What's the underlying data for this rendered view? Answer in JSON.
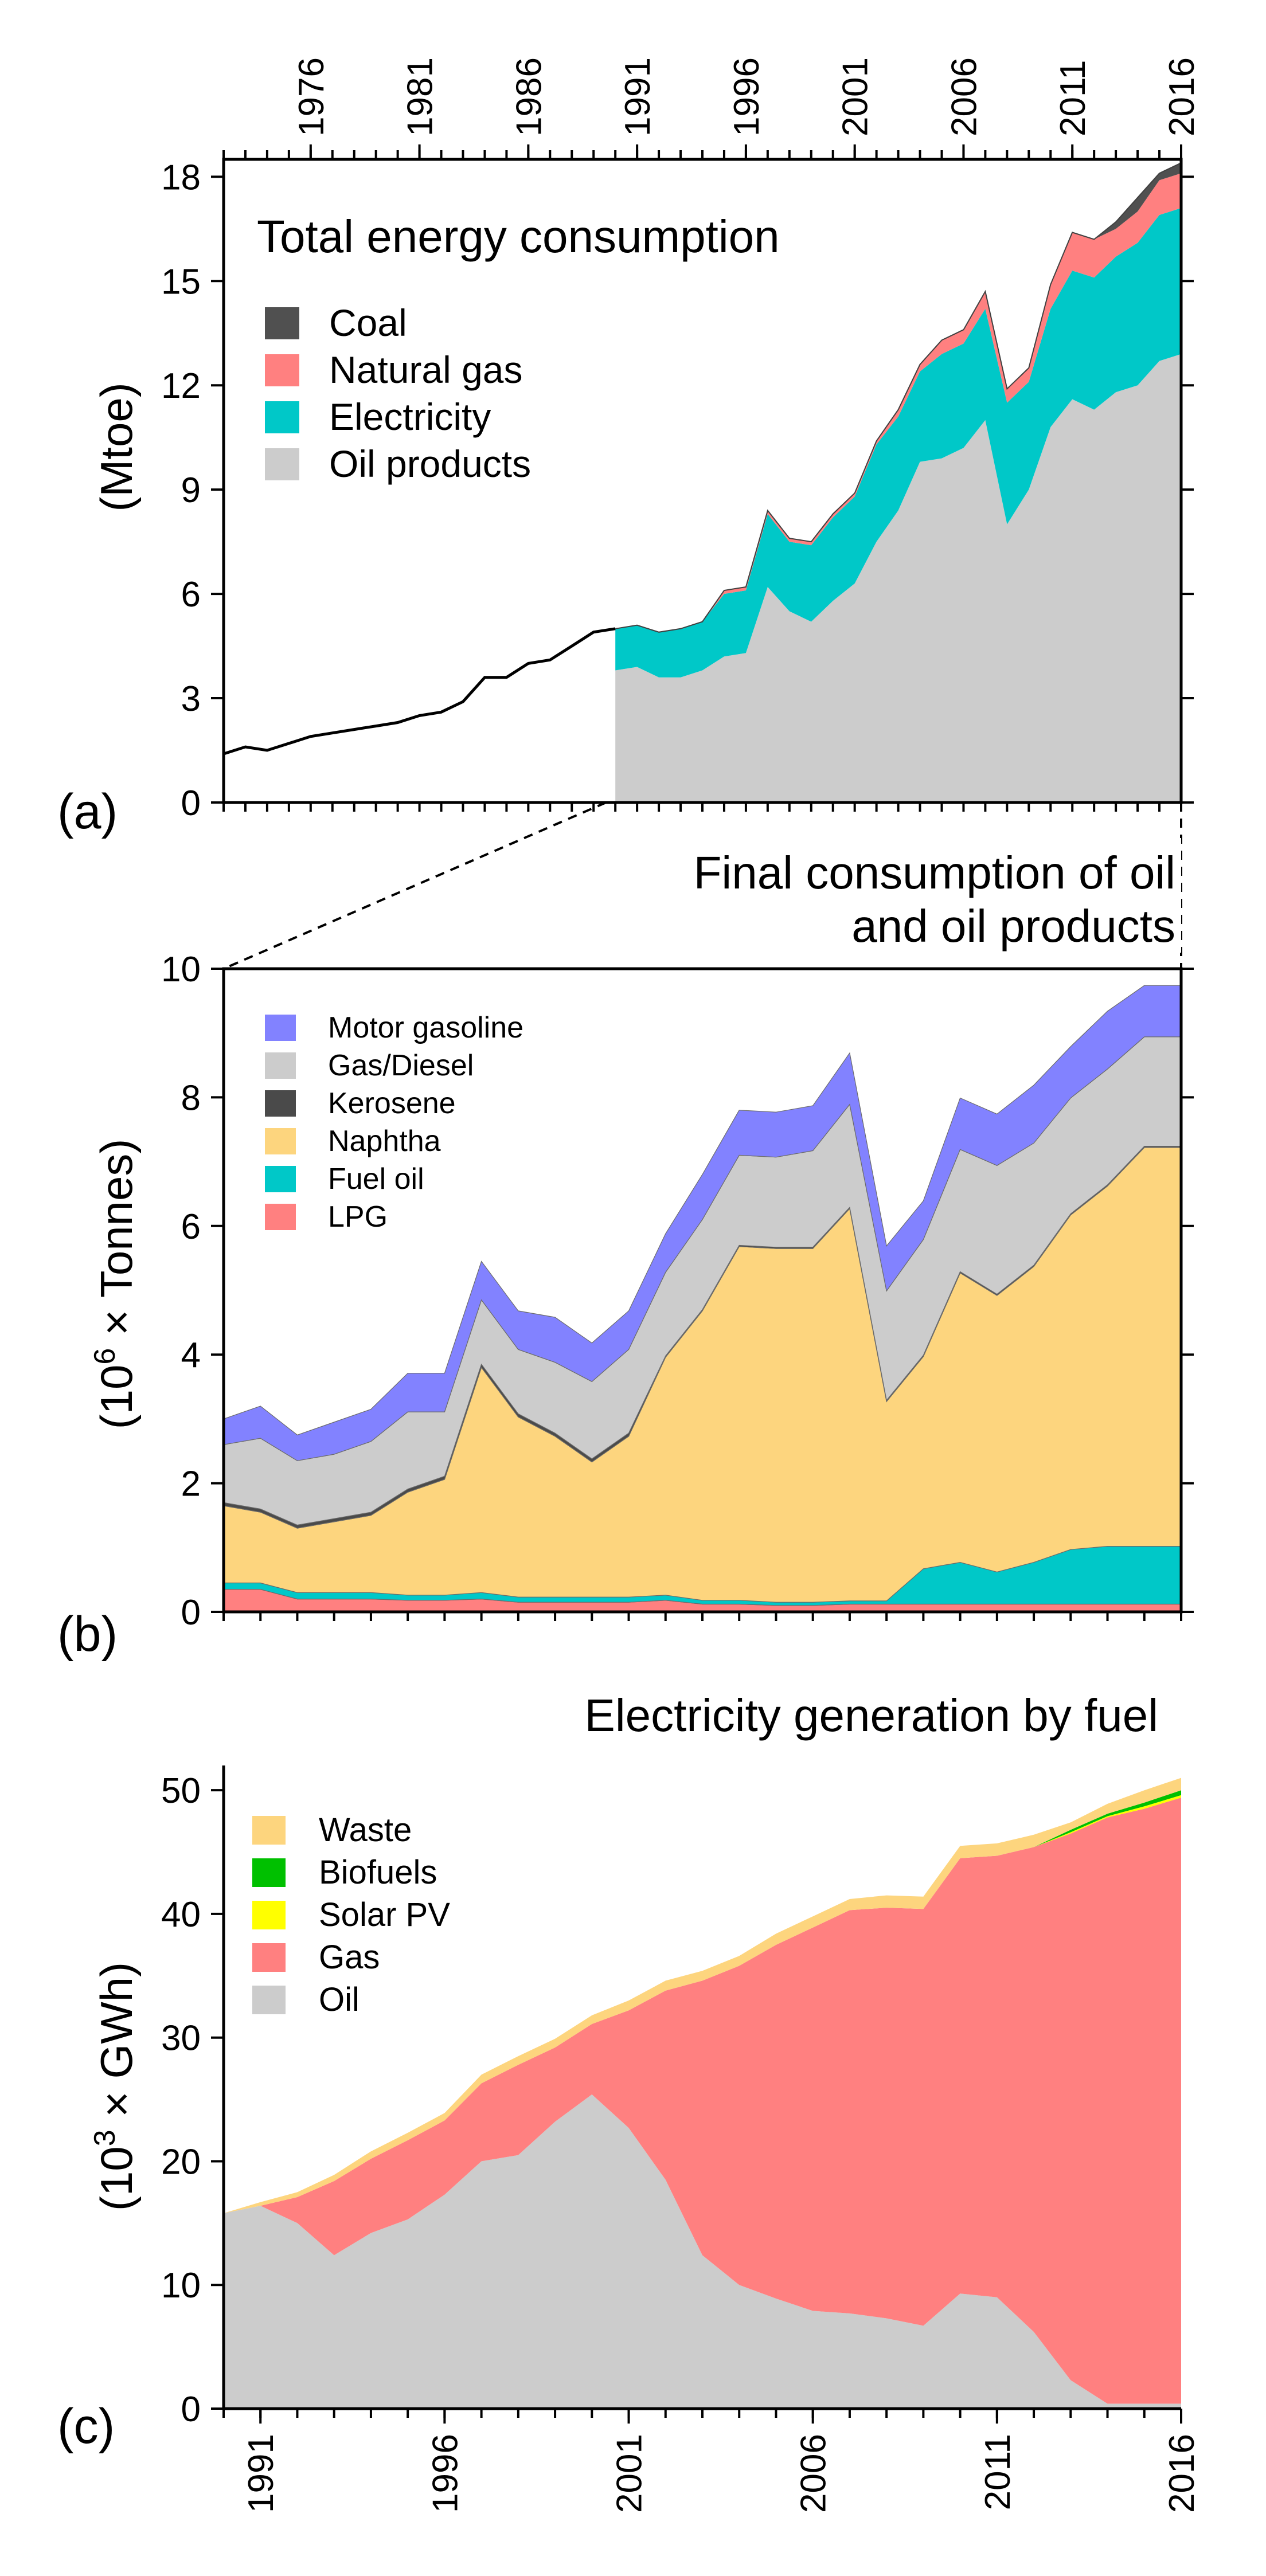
{
  "chart_data": [
    {
      "id": "a",
      "type": "area",
      "panel_label": "(a)",
      "title": "Total energy consumption",
      "ylabel": "(Mtoe)",
      "xlim": [
        1972,
        2016
      ],
      "ylim": [
        0,
        18.5
      ],
      "xticks": [
        1976,
        1981,
        1986,
        1991,
        1996,
        2001,
        2006,
        2011,
        2016
      ],
      "xtick_labels": [
        "1976",
        "1981",
        "1986",
        "1991",
        "1996",
        "2001",
        "2006",
        "2011",
        "2016"
      ],
      "yticks": [
        0,
        3,
        6,
        9,
        12,
        15,
        18
      ],
      "ytick_labels": [
        "0",
        "3",
        "6",
        "9",
        "12",
        "15",
        "18"
      ],
      "x": [
        1990,
        1991,
        1992,
        1993,
        1994,
        1995,
        1996,
        1997,
        1998,
        1999,
        2000,
        2001,
        2002,
        2003,
        2004,
        2005,
        2006,
        2007,
        2008,
        2009,
        2010,
        2011,
        2012,
        2013,
        2014,
        2015,
        2016
      ],
      "series": [
        {
          "name": "Oil products",
          "color": "#cccccc",
          "values": [
            3.8,
            3.9,
            3.6,
            3.6,
            3.8,
            4.2,
            4.3,
            6.2,
            5.5,
            5.2,
            5.8,
            6.3,
            7.5,
            8.4,
            9.8,
            9.9,
            10.2,
            11.0,
            8.0,
            9.0,
            10.8,
            11.6,
            11.3,
            11.8,
            12.0,
            12.7,
            12.9
          ]
        },
        {
          "name": "Electricity",
          "color": "#00c8c8",
          "values": [
            1.2,
            1.2,
            1.3,
            1.4,
            1.4,
            1.8,
            1.8,
            2.1,
            2.0,
            2.2,
            2.4,
            2.5,
            2.8,
            2.7,
            2.6,
            3.0,
            3.0,
            3.2,
            3.5,
            3.1,
            3.4,
            3.7,
            3.8,
            3.9,
            4.1,
            4.2,
            4.2
          ]
        },
        {
          "name": "Natural gas",
          "color": "#ff8080",
          "values": [
            0.0,
            0.0,
            0.0,
            0.0,
            0.0,
            0.1,
            0.1,
            0.1,
            0.1,
            0.1,
            0.1,
            0.1,
            0.1,
            0.2,
            0.2,
            0.4,
            0.4,
            0.5,
            0.4,
            0.4,
            0.7,
            1.1,
            1.1,
            0.8,
            0.9,
            1.0,
            1.0
          ]
        },
        {
          "name": "Coal",
          "color": "#505050",
          "values": [
            0,
            0,
            0,
            0,
            0,
            0,
            0,
            0,
            0,
            0,
            0,
            0,
            0,
            0,
            0,
            0,
            0,
            0,
            0,
            0,
            0,
            0,
            0,
            0.2,
            0.4,
            0.2,
            0.3
          ]
        }
      ],
      "line_series": {
        "name": "Total (pre-1990)",
        "color": "#000000",
        "x": [
          1972,
          1973,
          1974,
          1975,
          1976,
          1977,
          1978,
          1979,
          1980,
          1981,
          1982,
          1983,
          1984,
          1985,
          1986,
          1987,
          1988,
          1989,
          1990
        ],
        "values": [
          1.4,
          1.6,
          1.5,
          1.7,
          1.9,
          2.0,
          2.1,
          2.2,
          2.3,
          2.5,
          2.6,
          2.9,
          3.6,
          3.6,
          4.0,
          4.1,
          4.5,
          4.9,
          5.0
        ]
      },
      "legend": {
        "position": "top-left",
        "order": [
          "Coal",
          "Natural gas",
          "Electricity",
          "Oil products"
        ]
      }
    },
    {
      "id": "b",
      "type": "area",
      "panel_label": "(b)",
      "title_lines": [
        "Final consumption of oil",
        "and oil products"
      ],
      "ylabel_base": "(10",
      "ylabel_sup": "6",
      "ylabel_rest": " × Tonnes)",
      "xlim": [
        1990,
        2016
      ],
      "ylim": [
        0,
        10
      ],
      "yticks": [
        0,
        2,
        4,
        6,
        8,
        10
      ],
      "ytick_labels": [
        "0",
        "2",
        "4",
        "6",
        "8",
        "10"
      ],
      "x": [
        1990,
        1991,
        1992,
        1993,
        1994,
        1995,
        1996,
        1997,
        1998,
        1999,
        2000,
        2001,
        2002,
        2003,
        2004,
        2005,
        2006,
        2007,
        2008,
        2009,
        2010,
        2011,
        2012,
        2013,
        2014,
        2015,
        2016
      ],
      "series": [
        {
          "name": "LPG",
          "color": "#ff8080",
          "values": [
            0.35,
            0.35,
            0.2,
            0.2,
            0.2,
            0.18,
            0.18,
            0.2,
            0.15,
            0.15,
            0.15,
            0.15,
            0.18,
            0.12,
            0.12,
            0.1,
            0.1,
            0.12,
            0.12,
            0.12,
            0.12,
            0.12,
            0.12,
            0.12,
            0.12,
            0.12,
            0.12
          ]
        },
        {
          "name": "Fuel oil",
          "color": "#00c8c8",
          "values": [
            0.1,
            0.1,
            0.1,
            0.1,
            0.1,
            0.08,
            0.08,
            0.1,
            0.08,
            0.08,
            0.08,
            0.08,
            0.08,
            0.06,
            0.06,
            0.05,
            0.05,
            0.05,
            0.05,
            0.55,
            0.65,
            0.5,
            0.65,
            0.85,
            0.9,
            0.9,
            0.9
          ]
        },
        {
          "name": "Naphtha",
          "color": "#fdd57e",
          "values": [
            1.2,
            1.1,
            1.0,
            1.1,
            1.2,
            1.6,
            1.8,
            3.5,
            2.8,
            2.5,
            2.1,
            2.5,
            3.7,
            4.5,
            5.5,
            5.5,
            5.5,
            6.1,
            3.1,
            3.3,
            4.5,
            4.3,
            4.6,
            5.2,
            5.6,
            6.2,
            6.2
          ]
        },
        {
          "name": "Kerosene",
          "color": "#4a4a4a",
          "values": [
            0.05,
            0.05,
            0.05,
            0.05,
            0.05,
            0.05,
            0.05,
            0.05,
            0.05,
            0.05,
            0.05,
            0.05,
            0.02,
            0.02,
            0.02,
            0.02,
            0.02,
            0.02,
            0.02,
            0.02,
            0.02,
            0.02,
            0.02,
            0.02,
            0.02,
            0.02,
            0.02
          ]
        },
        {
          "name": "Gas/Diesel",
          "color": "#cccccc",
          "values": [
            0.9,
            1.1,
            1.0,
            1.0,
            1.1,
            1.2,
            1.0,
            1.0,
            1.0,
            1.1,
            1.2,
            1.3,
            1.3,
            1.4,
            1.4,
            1.4,
            1.5,
            1.6,
            1.7,
            1.8,
            1.9,
            2.0,
            1.9,
            1.8,
            1.8,
            1.7,
            1.7
          ]
        },
        {
          "name": "Motor gasoline",
          "color": "#8282ff",
          "values": [
            0.4,
            0.5,
            0.4,
            0.5,
            0.5,
            0.6,
            0.6,
            0.6,
            0.6,
            0.7,
            0.6,
            0.6,
            0.6,
            0.7,
            0.7,
            0.7,
            0.7,
            0.8,
            0.7,
            0.6,
            0.8,
            0.8,
            0.9,
            0.8,
            0.9,
            0.8,
            0.8
          ]
        }
      ],
      "legend": {
        "position": "top-left",
        "order": [
          "Motor gasoline",
          "Gas/Diesel",
          "Kerosene",
          "Naphtha",
          "Fuel oil",
          "LPG"
        ]
      }
    },
    {
      "id": "c",
      "type": "area",
      "panel_label": "(c)",
      "title": "Electricity generation by fuel",
      "ylabel_base": "(10",
      "ylabel_sup": "3",
      "ylabel_rest": " × GWh)",
      "xlim": [
        1990,
        2016
      ],
      "ylim": [
        0,
        52
      ],
      "xticks": [
        1991,
        1996,
        2001,
        2006,
        2011,
        2016
      ],
      "xtick_labels": [
        "1991",
        "1996",
        "2001",
        "2006",
        "2011",
        "2016"
      ],
      "yticks": [
        0,
        10,
        20,
        30,
        40,
        50
      ],
      "ytick_labels": [
        "0",
        "10",
        "20",
        "30",
        "40",
        "50"
      ],
      "x": [
        1990,
        1991,
        1992,
        1993,
        1994,
        1995,
        1996,
        1997,
        1998,
        1999,
        2000,
        2001,
        2002,
        2003,
        2004,
        2005,
        2006,
        2007,
        2008,
        2009,
        2010,
        2011,
        2012,
        2013,
        2014,
        2015,
        2016
      ],
      "series": [
        {
          "name": "Oil",
          "color": "#cccccc",
          "values": [
            15.8,
            16.4,
            15.0,
            12.4,
            14.2,
            15.3,
            17.3,
            20.0,
            20.5,
            23.2,
            25.4,
            22.7,
            18.5,
            12.4,
            10.0,
            8.9,
            7.9,
            7.7,
            7.3,
            6.7,
            9.3,
            9.0,
            6.2,
            2.3,
            0.4,
            0.4,
            0.4
          ]
        },
        {
          "name": "Gas",
          "color": "#ff8080",
          "values": [
            0.0,
            0.0,
            2.1,
            6.0,
            6.0,
            6.4,
            6.0,
            6.3,
            7.3,
            6.0,
            5.7,
            9.5,
            15.3,
            22.2,
            25.8,
            28.6,
            31.0,
            32.6,
            33.2,
            33.7,
            35.2,
            35.7,
            39.2,
            44.2,
            47.4,
            48.1,
            49.0
          ]
        },
        {
          "name": "Solar PV",
          "color": "#ffff00",
          "values": [
            0,
            0,
            0,
            0,
            0,
            0,
            0,
            0,
            0,
            0,
            0,
            0,
            0,
            0,
            0,
            0,
            0,
            0,
            0,
            0,
            0,
            0,
            0,
            0.1,
            0.1,
            0.2,
            0.2
          ]
        },
        {
          "name": "Biofuels",
          "color": "#00c000",
          "values": [
            0,
            0,
            0,
            0,
            0,
            0,
            0,
            0,
            0,
            0,
            0,
            0,
            0,
            0,
            0,
            0,
            0,
            0,
            0,
            0,
            0,
            0,
            0,
            0.2,
            0.2,
            0.3,
            0.4
          ]
        },
        {
          "name": "Waste",
          "color": "#fdd57e",
          "values": [
            0.0,
            0.3,
            0.4,
            0.5,
            0.6,
            0.6,
            0.6,
            0.7,
            0.7,
            0.7,
            0.7,
            0.8,
            0.8,
            0.8,
            0.8,
            0.9,
            0.9,
            0.9,
            1.0,
            1.0,
            1.0,
            1.0,
            1.0,
            0.6,
            0.8,
            1.0,
            1.0
          ]
        }
      ],
      "legend": {
        "position": "top-left",
        "order": [
          "Waste",
          "Biofuels",
          "Solar PV",
          "Gas",
          "Oil"
        ]
      }
    }
  ]
}
